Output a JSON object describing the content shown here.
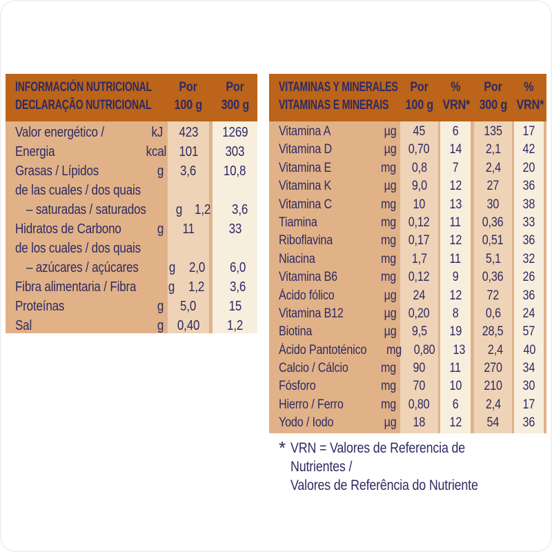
{
  "colors": {
    "header_bg": "#bc6419",
    "body_bg": "#e1b288",
    "band_tan": "#eed3b6",
    "band_cream": "#f8eede",
    "text": "#2e2a63"
  },
  "left_table": {
    "title_line1": "INFORMACIÓN NUTRICIONAL",
    "title_line2": "DECLARAÇÃO NUTRICIONAL",
    "col_headers": [
      {
        "line1": "Por",
        "line2": "100 g"
      },
      {
        "line1": "Por",
        "line2": "300 g"
      }
    ],
    "rows": [
      {
        "label": "Valor energético /",
        "unit": "kJ",
        "per100": "423",
        "per300": "1269"
      },
      {
        "label": "Energia",
        "unit": "kcal",
        "per100": "101",
        "per300": "303"
      },
      {
        "label": "Grasas / Lípidos",
        "unit": "g",
        "per100": "3,6",
        "per300": "10,8"
      },
      {
        "label": "de las cuales / dos quais",
        "unit": "",
        "per100": "",
        "per300": ""
      },
      {
        "label": "– saturadas / saturados",
        "unit": "g",
        "per100": "1,2",
        "per300": "3,6",
        "indent": true
      },
      {
        "label": "Hidratos de Carbono",
        "unit": "g",
        "per100": "11",
        "per300": "33"
      },
      {
        "label": "de los cuales / dos quais",
        "unit": "",
        "per100": "",
        "per300": ""
      },
      {
        "label": "– azúcares / açúcares",
        "unit": "g",
        "per100": "2,0",
        "per300": "6,0",
        "indent": true
      },
      {
        "label": "Fibra alimentaria / Fibra",
        "unit": "g",
        "per100": "1,2",
        "per300": "3,6"
      },
      {
        "label": "Proteínas",
        "unit": "g",
        "per100": "5,0",
        "per300": "15"
      },
      {
        "label": "Sal",
        "unit": "g",
        "per100": "0,40",
        "per300": "1,2"
      }
    ]
  },
  "right_table": {
    "title_line1": "VITAMINAS Y MINERALES",
    "title_line2": "VITAMINAS E MINERAIS",
    "col_headers": [
      {
        "line1": "Por",
        "line2": "100 g"
      },
      {
        "line1": "%",
        "line2": "VRN*"
      },
      {
        "line1": "Por",
        "line2": "300 g"
      },
      {
        "line1": "%",
        "line2": "VRN*"
      }
    ],
    "rows": [
      {
        "label": "Vitamina A",
        "unit": "µg",
        "per100": "45",
        "vrn100": "6",
        "per300": "135",
        "vrn300": "17"
      },
      {
        "label": "Vitamina D",
        "unit": "µg",
        "per100": "0,70",
        "vrn100": "14",
        "per300": "2,1",
        "vrn300": "42"
      },
      {
        "label": "Vitamina E",
        "unit": "mg",
        "per100": "0,8",
        "vrn100": "7",
        "per300": "2,4",
        "vrn300": "20"
      },
      {
        "label": "Vitamina K",
        "unit": "µg",
        "per100": "9,0",
        "vrn100": "12",
        "per300": "27",
        "vrn300": "36"
      },
      {
        "label": "Vitamina C",
        "unit": "mg",
        "per100": "10",
        "vrn100": "13",
        "per300": "30",
        "vrn300": "38"
      },
      {
        "label": "Tiamina",
        "unit": "mg",
        "per100": "0,12",
        "vrn100": "11",
        "per300": "0,36",
        "vrn300": "33"
      },
      {
        "label": "Riboflavina",
        "unit": "mg",
        "per100": "0,17",
        "vrn100": "12",
        "per300": "0,51",
        "vrn300": "36"
      },
      {
        "label": "Niacina",
        "unit": "mg",
        "per100": "1,7",
        "vrn100": "11",
        "per300": "5,1",
        "vrn300": "32"
      },
      {
        "label": "Vitamina B6",
        "unit": "mg",
        "per100": "0,12",
        "vrn100": "9",
        "per300": "0,36",
        "vrn300": "26"
      },
      {
        "label": "Ácido fólico",
        "unit": "µg",
        "per100": "24",
        "vrn100": "12",
        "per300": "72",
        "vrn300": "36"
      },
      {
        "label": "Vitamina B12",
        "unit": "µg",
        "per100": "0,20",
        "vrn100": "8",
        "per300": "0,6",
        "vrn300": "24"
      },
      {
        "label": "Biotina",
        "unit": "µg",
        "per100": "9,5",
        "vrn100": "19",
        "per300": "28,5",
        "vrn300": "57"
      },
      {
        "label": "Ácido Pantoténico",
        "unit": "mg",
        "per100": "0,80",
        "vrn100": "13",
        "per300": "2,4",
        "vrn300": "40"
      },
      {
        "label": "Calcio / Cálcio",
        "unit": "mg",
        "per100": "90",
        "vrn100": "11",
        "per300": "270",
        "vrn300": "34"
      },
      {
        "label": "Fósforo",
        "unit": "mg",
        "per100": "70",
        "vrn100": "10",
        "per300": "210",
        "vrn300": "30"
      },
      {
        "label": "Hierro / Ferro",
        "unit": "mg",
        "per100": "0,80",
        "vrn100": "6",
        "per300": "2,4",
        "vrn300": "17"
      },
      {
        "label": "Yodo / Iodo",
        "unit": "µg",
        "per100": "18",
        "vrn100": "12",
        "per300": "54",
        "vrn300": "36"
      }
    ]
  },
  "footnote": {
    "marker": "*",
    "line1": "VRN = Valores de Referencia de Nutrientes /",
    "line2": "Valores de Referência do Nutriente"
  }
}
